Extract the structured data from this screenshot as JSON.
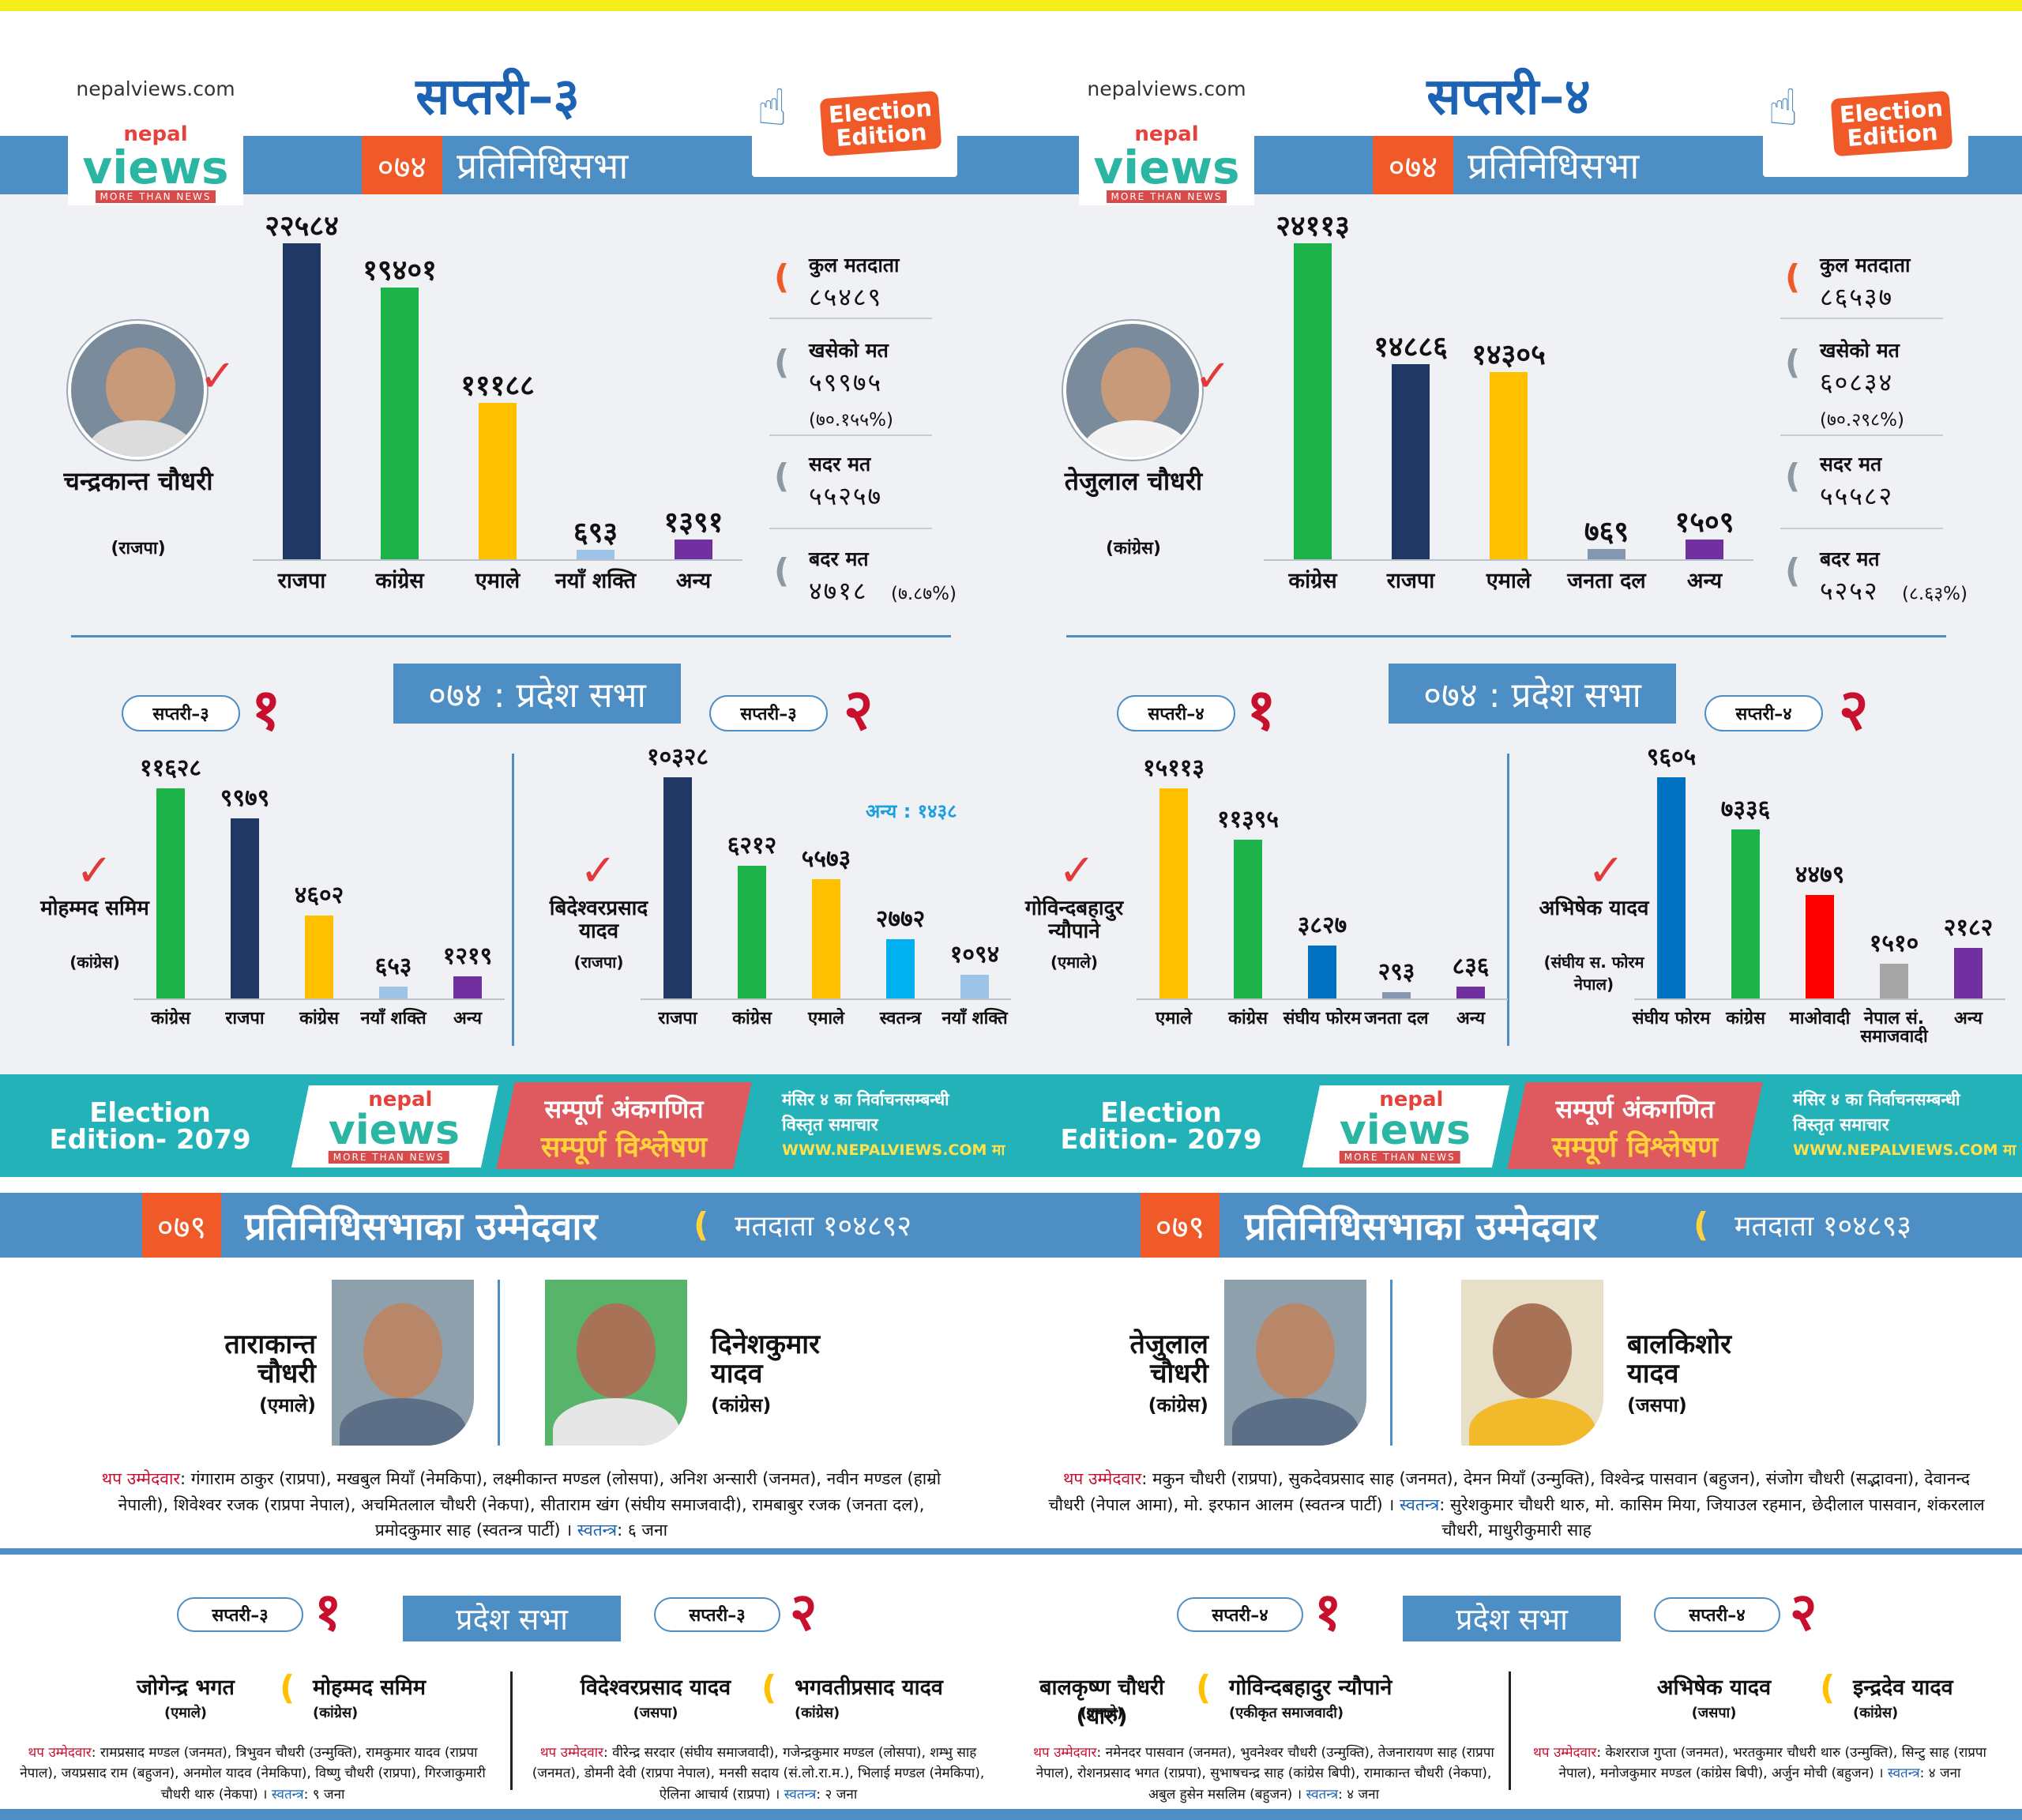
{
  "site_name": "nepalviews.com",
  "logo": {
    "nepal": "nepal",
    "views": "views",
    "tagline": "MORE THAN NEWS"
  },
  "election_badge": "Election Edition",
  "colors": {
    "accent_blue": "#4d8ec4",
    "accent_orange": "#f05a28",
    "teal": "#22b2b8",
    "red": "#c8102e"
  },
  "left": {
    "title": "सप्तरी–३",
    "hor_2074": {
      "year": "०७४",
      "label": "प्रतिनिधिसभा",
      "winner": {
        "name": "चन्द्रकान्त चौधरी",
        "party": "(राजपा)"
      },
      "chart_data": {
        "type": "bar",
        "categories": [
          "राजपा",
          "कांग्रेस",
          "एमाले",
          "नयाँ शक्ति",
          "अन्य"
        ],
        "values": [
          22584,
          19401,
          11188,
          693,
          1391
        ],
        "value_labels": [
          "२२५८४",
          "१९४०१",
          "१११८८",
          "६९३",
          "१३९१"
        ],
        "colors": [
          "#1f3864",
          "#1db34a",
          "#ffc000",
          "#9dc3e6",
          "#7030a0"
        ]
      },
      "stats": {
        "total_label": "कुल मतदाता",
        "total_value": "८५४८९",
        "cast_label": "खसेको मत",
        "cast_value": "५९९७५",
        "cast_pct": "(७०.१५५%)",
        "valid_label": "सदर मत",
        "valid_value": "५५२५७",
        "invalid_label": "बदर मत",
        "invalid_value": "४७१८",
        "invalid_pct": "(७.८७%)"
      }
    },
    "provincial_title": "०७४ : प्रदेश सभा",
    "prov1": {
      "pill": "सप्तरी–३",
      "num": "१",
      "winner": {
        "name": "मोहम्मद समिम",
        "party": "(कांग्रेस)"
      },
      "chart_data": {
        "type": "bar",
        "categories": [
          "कांग्रेस",
          "राजपा",
          "कांग्रेस",
          "नयाँ शक्ति",
          "अन्य"
        ],
        "values": [
          11628,
          9979,
          4602,
          653,
          1219
        ],
        "value_labels": [
          "११६२८",
          "९९७९",
          "४६०२",
          "६५३",
          "१२१९"
        ],
        "colors": [
          "#1db34a",
          "#1f3864",
          "#ffc000",
          "#9dc3e6",
          "#7030a0"
        ]
      }
    },
    "prov2": {
      "pill": "सप्तरी–३",
      "num": "२",
      "winner": {
        "name": "बिदेश्वरप्रसाद यादव",
        "party": "(राजपा)"
      },
      "note": "अन्य : १४३८",
      "chart_data": {
        "type": "bar",
        "categories": [
          "राजपा",
          "कांग्रेस",
          "एमाले",
          "स्वतन्त्र",
          "नयाँ शक्ति"
        ],
        "values": [
          10328,
          6212,
          5573,
          2772,
          1094
        ],
        "value_labels": [
          "१०३२८",
          "६२१२",
          "५५७३",
          "२७७२",
          "१०९४"
        ],
        "colors": [
          "#1f3864",
          "#1db34a",
          "#ffc000",
          "#00b0f0",
          "#9dc3e6"
        ]
      }
    },
    "hor_2079": {
      "year": "०७९",
      "label": "प्रतिनिधिसभाका उम्मेदवार",
      "voters": "मतदाता १०४८९२",
      "cand1": {
        "name": "ताराकान्त चौधरी",
        "party": "(एमाले)"
      },
      "cand2": {
        "name": "दिनेशकुमार यादव",
        "party": "(कांग्रेस)"
      },
      "more_label": "थप उम्मेदवार",
      "more": ": गंगाराम ठाकुर (राप्रपा), मखबुल मियाँ (नेमकिपा), लक्ष्मीकान्त मण्डल (लोसपा), अनिश अन्सारी (जनमत), नवीन मण्डल (हाम्रो नेपाली), शिवेश्वर रजक (राप्रपा नेपाल), अचमितलाल चौधरी (नेकपा), सीताराम खंग (संघीय समाजवादी), रामबाबुर रजक (जनता दल), प्रमोदकुमार साह (स्वतन्त्र पार्टी) ।",
      "independent_label": "स्वतन्त्र",
      "independent": ": ६ जना"
    },
    "prov_2079": {
      "title": "प्रदेश सभा",
      "p1": {
        "pill": "सप्तरी–३",
        "num": "१",
        "a": {
          "name": "जोगेन्द्र भगत",
          "party": "(एमाले)"
        },
        "b": {
          "name": "मोहम्मद समिम",
          "party": "(कांग्रेस)"
        },
        "more_label": "थप उम्मेदवार",
        "more": ": रामप्रसाद मण्डल (जनमत), त्रिभुवन चौधरी (उन्मुक्ति), रामकुमार यादव (राप्रपा नेपाल), जयप्रसाद राम (बहुजन), अनमोल यादव (नेमकिपा), विष्णु चौधरी (राप्रपा), गिरजाकुमारी चौधरी थारु (नेकपा) ।",
        "independent_label": "स्वतन्त्र",
        "independent": ": ९ जना"
      },
      "p2": {
        "pill": "सप्तरी–३",
        "num": "२",
        "a": {
          "name": "विदेश्वरप्रसाद यादव",
          "party": "(जसपा)"
        },
        "b": {
          "name": "भगवतीप्रसाद यादव",
          "party": "(कांग्रेस)"
        },
        "more_label": "थप उम्मेदवार",
        "more": ": वीरेन्द्र सरदार (संघीय समाजवादी), गजेन्द्रकुमार मण्डल (लोसपा), शम्भु साह (जनमत), डोमनी देवी (राप्रपा नेपाल), मनसी सदाय (सं.लो.रा.म.), भिलाई मण्डल (नेमकिपा), ऐलिना आचार्य (राप्रपा) ।",
        "independent_label": "स्वतन्त्र",
        "independent": ": २ जना"
      }
    }
  },
  "right": {
    "title": "सप्तरी–४",
    "hor_2074": {
      "year": "०७४",
      "label": "प्रतिनिधिसभा",
      "winner": {
        "name": "तेजुलाल चौधरी",
        "party": "(कांग्रेस)"
      },
      "chart_data": {
        "type": "bar",
        "categories": [
          "कांग्रेस",
          "राजपा",
          "एमाले",
          "जनता दल",
          "अन्य"
        ],
        "values": [
          24113,
          14886,
          14305,
          769,
          1509
        ],
        "value_labels": [
          "२४११३",
          "१४८८६",
          "१४३०५",
          "७६९",
          "१५०९"
        ],
        "colors": [
          "#1db34a",
          "#1f3864",
          "#ffc000",
          "#8497b0",
          "#7030a0"
        ]
      },
      "stats": {
        "total_label": "कुल मतदाता",
        "total_value": "८६५३७",
        "cast_label": "खसेको मत",
        "cast_value": "६०८३४",
        "cast_pct": "(७०.२९८%)",
        "valid_label": "सदर मत",
        "valid_value": "५५५८२",
        "invalid_label": "बदर मत",
        "invalid_value": "५२५२",
        "invalid_pct": "(८.६३%)"
      }
    },
    "provincial_title": "०७४ : प्रदेश सभा",
    "prov1": {
      "pill": "सप्तरी–४",
      "num": "१",
      "winner": {
        "name": "गोविन्दबहादुर न्यौपाने",
        "party": "(एमाले)"
      },
      "chart_data": {
        "type": "bar",
        "categories": [
          "एमाले",
          "कांग्रेस",
          "संघीय फोरम",
          "जनता दल",
          "अन्य"
        ],
        "values": [
          15113,
          11395,
          3827,
          293,
          836
        ],
        "value_labels": [
          "१५११३",
          "११३९५",
          "३८२७",
          "२९३",
          "८३६"
        ],
        "colors": [
          "#ffc000",
          "#1db34a",
          "#0070c0",
          "#8497b0",
          "#7030a0"
        ]
      }
    },
    "prov2": {
      "pill": "सप्तरी–४",
      "num": "२",
      "winner": {
        "name": "अभिषेक यादव",
        "party": "(संघीय स. फोरम नेपाल)"
      },
      "chart_data": {
        "type": "bar",
        "categories": [
          "संघीय फोरम",
          "कांग्रेस",
          "माओवादी",
          "नेपाल सं. समाजवादी",
          "अन्य"
        ],
        "values": [
          9605,
          7336,
          4479,
          1510,
          2182
        ],
        "value_labels": [
          "९६०५",
          "७३३६",
          "४४७९",
          "१५१०",
          "२१८२"
        ],
        "colors": [
          "#0070c0",
          "#1db34a",
          "#ff0000",
          "#a6a6a6",
          "#7030a0"
        ]
      }
    },
    "hor_2079": {
      "year": "०७९",
      "label": "प्रतिनिधिसभाका उम्मेदवार",
      "voters": "मतदाता १०४८९३",
      "cand1": {
        "name": "तेजुलाल चौधरी",
        "party": "(कांग्रेस)"
      },
      "cand2": {
        "name": "बालकिशोर यादव",
        "party": "(जसपा)"
      },
      "more_label": "थप उम्मेदवार",
      "more": ": मकुन चौधरी (राप्रपा), सुकदेवप्रसाद साह (जनमत), देमन मियाँ (उन्मुक्ति), विश्वेन्द्र पासवान (बहुजन), संजोग चौधरी (सद्भावना), देवानन्द चौधरी (नेपाल आमा), मो. इरफान आलम (स्वतन्त्र पार्टी) ।",
      "independent_label": "स्वतन्त्र",
      "independent": ": सुरेशकुमार चौधरी थारु, मो. कासिम मिया, जियाउल रहमान, छेदीलाल पासवान, शंकरलाल चौधरी, माधुरीकुमारी साह"
    },
    "prov_2079": {
      "title": "प्रदेश सभा",
      "p1": {
        "pill": "सप्तरी–४",
        "num": "१",
        "a": {
          "name": "बालकृष्ण चौधरी (थारु)",
          "party": "(एमाले)"
        },
        "b": {
          "name": "गोविन्दबहादुर न्यौपाने",
          "party": "(एकीकृत समाजवादी)"
        },
        "more_label": "थप उम्मेदवार",
        "more": ": नमेनदर पासवान (जनमत), भुवनेश्वर चौधरी (उन्मुक्ति), तेजनारायण साह (राप्रपा नेपाल), रोशनप्रसाद भगत (राप्रपा), सुभाषचन्द्र साह (कांग्रेस बिपी), रामाकान्त चौधरी (नेकपा), अबुल हुसेन मसलिम (बहुजन) ।",
        "independent_label": "स्वतन्त्र",
        "independent": ": ४ जना"
      },
      "p2": {
        "pill": "सप्तरी–४",
        "num": "२",
        "a": {
          "name": "अभिषेक यादव",
          "party": "(जसपा)"
        },
        "b": {
          "name": "इन्द्रदेव यादव",
          "party": "(कांग्रेस)"
        },
        "more_label": "थप उम्मेदवार",
        "more": ": केशरराज गुप्ता (जनमत), भरतकुमार चौधरी थारु (उन्मुक्ति), सिन्टु साह (राप्रपा नेपाल), मनोजकुमार मण्डल (कांग्रेस बिपी), अर्जुन मोची (बहुजन) ।",
        "independent_label": "स्वतन्त्र",
        "independent": ": ४ जना"
      }
    }
  },
  "banner": {
    "edition": "Election Edition- 2079",
    "slogan1": "सम्पूर्ण अंकगणित",
    "slogan2": "सम्पूर्ण विश्लेषण",
    "info1": "मंसिर ४ का निर्वाचनसम्बन्धी",
    "info2": "विस्तृत समाचार",
    "url": "WWW.NEPALVIEWS.COM मा"
  }
}
